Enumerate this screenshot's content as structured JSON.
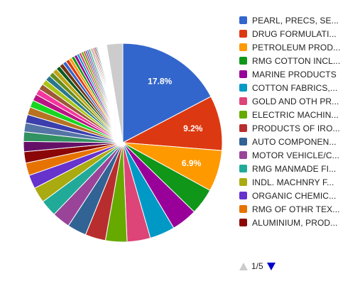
{
  "chart_data": {
    "type": "pie",
    "slices": [
      {
        "label": "PEARL, PRECS, SE...",
        "value": 17.8,
        "color": "#3366cc",
        "data_label": "17.8%"
      },
      {
        "label": "DRUG FORMULATI...",
        "value": 9.2,
        "color": "#dc3912",
        "data_label": "9.2%"
      },
      {
        "label": "PETROLEUM PROD...",
        "value": 6.9,
        "color": "#ff9900",
        "data_label": "6.9%"
      },
      {
        "label": "RMG COTTON INCL...",
        "value": 4.4,
        "color": "#109618"
      },
      {
        "label": "MARINE PRODUCTS",
        "value": 4.3,
        "color": "#990099"
      },
      {
        "label": "COTTON FABRICS,...",
        "value": 4.2,
        "color": "#0099c6"
      },
      {
        "label": "GOLD AND OTH PR...",
        "value": 3.9,
        "color": "#dd4477"
      },
      {
        "label": "ELECTRIC MACHIN...",
        "value": 3.6,
        "color": "#66aa00"
      },
      {
        "label": "PRODUCTS OF IRO...",
        "value": 3.4,
        "color": "#b82e2e"
      },
      {
        "label": "AUTO COMPONEN...",
        "value": 3.2,
        "color": "#316395"
      },
      {
        "label": "MOTOR VEHICLE/C...",
        "value": 3.0,
        "color": "#994499"
      },
      {
        "label": "RMG MANMADE FI...",
        "value": 2.8,
        "color": "#22aa99"
      },
      {
        "label": "INDL. MACHNRY F...",
        "value": 2.6,
        "color": "#aaaa11"
      },
      {
        "label": "ORGANIC CHEMIC...",
        "value": 2.3,
        "color": "#6633cc"
      },
      {
        "label": "RMG OF OTHR TEX...",
        "value": 2.1,
        "color": "#e67300"
      },
      {
        "label": "ALUMINIUM, PROD...",
        "value": 1.9,
        "color": "#8b0707"
      },
      {
        "value": 1.7,
        "color": "#651067"
      },
      {
        "value": 1.6,
        "color": "#329262"
      },
      {
        "value": 1.5,
        "color": "#5574a6"
      },
      {
        "value": 1.4,
        "color": "#3b3eac"
      },
      {
        "value": 1.3,
        "color": "#b77322"
      },
      {
        "value": 1.2,
        "color": "#16d620"
      },
      {
        "value": 1.1,
        "color": "#b91383"
      },
      {
        "value": 1.0,
        "color": "#f4359e"
      },
      {
        "value": 1.0,
        "color": "#9c5935"
      },
      {
        "value": 0.9,
        "color": "#a9c413"
      },
      {
        "value": 0.9,
        "color": "#2a778d"
      },
      {
        "value": 0.8,
        "color": "#668d1c"
      },
      {
        "value": 0.8,
        "color": "#bea413"
      },
      {
        "value": 0.7,
        "color": "#0c5922"
      },
      {
        "value": 0.7,
        "color": "#743411"
      },
      {
        "value": 0.6,
        "color": "#3366cc"
      },
      {
        "value": 0.6,
        "color": "#dc3912"
      },
      {
        "value": 0.5,
        "color": "#ff9900"
      },
      {
        "value": 0.5,
        "color": "#109618"
      },
      {
        "value": 0.5,
        "color": "#990099"
      },
      {
        "value": 0.4,
        "color": "#0099c6"
      },
      {
        "value": 0.4,
        "color": "#dd4477"
      },
      {
        "value": 0.4,
        "color": "#66aa00"
      },
      {
        "value": 0.3,
        "color": "#b82e2e"
      },
      {
        "value": 0.3,
        "color": "#316395"
      },
      {
        "value": 0.3,
        "color": "#994499"
      },
      {
        "value": 0.3,
        "color": "#22aa99"
      },
      {
        "value": 0.2,
        "color": "#aaaa11"
      },
      {
        "value": 0.2,
        "color": "#6633cc"
      },
      {
        "value": 0.2,
        "color": "#e67300"
      },
      {
        "value": 0.2,
        "color": "#8b0707"
      },
      {
        "value": 0.2,
        "color": "#651067"
      },
      {
        "value": 0.2,
        "color": "#329262"
      },
      {
        "value": 0.1,
        "color": "#5574a6"
      },
      {
        "value": 0.1,
        "color": "#3b3eac"
      },
      {
        "value": 0.1,
        "color": "#b77322"
      },
      {
        "value": 0.1,
        "color": "#16d620"
      },
      {
        "value": 0.1,
        "color": "#b91383"
      },
      {
        "value": 0.1,
        "color": "#f4359e"
      },
      {
        "value": 0.1,
        "color": "#9c5935"
      },
      {
        "value": 0.1,
        "color": "#a9c413"
      },
      {
        "value": 0.1,
        "color": "#2a778d"
      },
      {
        "value": 0.1,
        "color": "#668d1c"
      },
      {
        "value": 0.1,
        "color": "#bea413"
      },
      {
        "value": 0.1,
        "color": "#0c5922"
      },
      {
        "value": 0.1,
        "color": "#743411"
      },
      {
        "value": 0.1,
        "color": "#3366cc"
      },
      {
        "value": 0.1,
        "color": "#dc3912"
      },
      {
        "value": 0.1,
        "color": "#ff9900"
      },
      {
        "value": 2.7,
        "color": "#cccccc"
      }
    ],
    "legend_position": "right",
    "pager": {
      "text": "1/5",
      "up_enabled": false,
      "down_enabled": true
    }
  }
}
